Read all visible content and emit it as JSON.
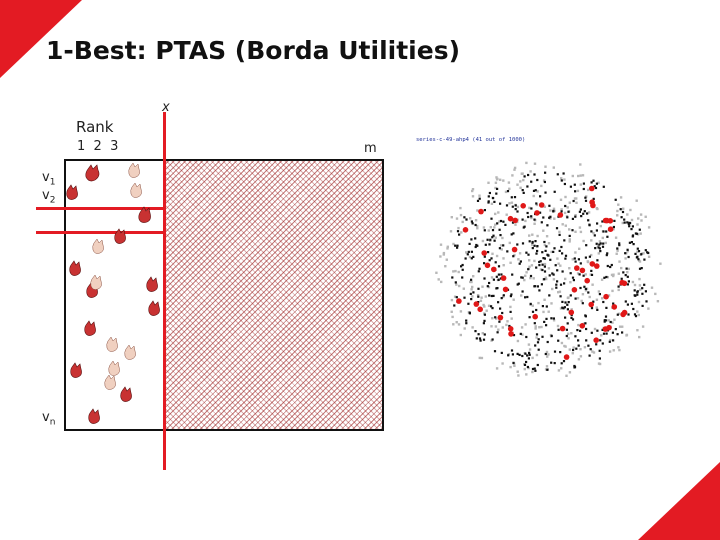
{
  "slide": {
    "title": "1-Best: PTAS (Borda Utilities)",
    "accent_color": "#e31b23",
    "labels": {
      "x": "x",
      "rank": "Rank",
      "rank_numbers": "1  2  3",
      "m": "m",
      "v1": "v",
      "v1_sub": "1",
      "v2": "v",
      "v2_sub": "2",
      "vn": "v",
      "vn_sub": "n"
    },
    "scatter_caption": "series-c-49-ahp4 (41 out of 1000)"
  }
}
